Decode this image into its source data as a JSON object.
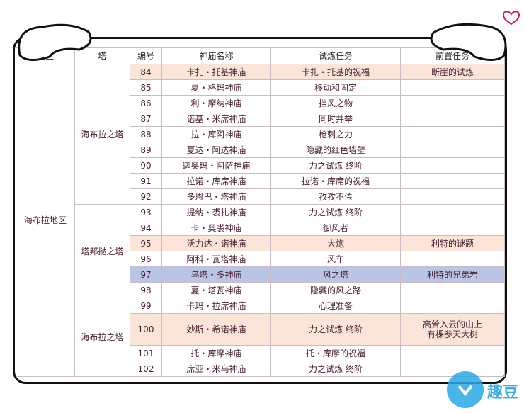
{
  "table": {
    "header": [
      "地区",
      "塔",
      "编号",
      "神庙名称",
      "试炼任务",
      "前置任务"
    ],
    "region": "海布拉地区",
    "groups": [
      {
        "tower": "海布拉之塔",
        "rows": [
          {
            "no": 84,
            "shrine": "卡扎・托基神庙",
            "trial": "卡扎・托基的祝福",
            "prereq": "断崖的试炼",
            "color": "#fbe4d8"
          },
          {
            "no": 85,
            "shrine": "夏・格玛神庙",
            "trial": "移动和固定"
          },
          {
            "no": 86,
            "shrine": "利・摩纳神庙",
            "trial": "挡风之物"
          },
          {
            "no": 87,
            "shrine": "诺基・米席神庙",
            "trial": "同时并举"
          },
          {
            "no": 88,
            "shrine": "拉・库阿神庙",
            "trial": "枪刺之力"
          },
          {
            "no": 89,
            "shrine": "夏达・阿达神庙",
            "trial": "隐藏的红色墙壁"
          },
          {
            "no": 90,
            "shrine": "迦奥玛・阿萨神庙",
            "trial": "力之试炼 终阶"
          },
          {
            "no": 91,
            "shrine": "拉诺・库席神庙",
            "trial": "拉诺・库席的祝福"
          },
          {
            "no": 92,
            "shrine": "多恩巴・塔神庙",
            "trial": "孜孜不倦"
          }
        ]
      },
      {
        "tower": "塔邦挞之塔",
        "rows": [
          {
            "no": 93,
            "shrine": "提纳・裘扎神庙",
            "trial": "力之试炼 终阶"
          },
          {
            "no": 94,
            "shrine": "卡・奥裘神庙",
            "trial": "御风者"
          },
          {
            "no": 95,
            "shrine": "沃力达・诺神庙",
            "trial": "大炮",
            "prereq": "利特的谜题",
            "color": "#fbe4d8"
          },
          {
            "no": 96,
            "shrine": "阿科・瓦塔神庙",
            "trial": "风车"
          },
          {
            "no": 97,
            "shrine": "乌塔・多神庙",
            "trial": "风之塔",
            "prereq": "利特的兄弟岩",
            "color": "#b9c5e6"
          },
          {
            "no": 98,
            "shrine": "夏・塔瓦神庙",
            "trial": "隐藏的风之路"
          }
        ]
      },
      {
        "tower": "海布拉之塔",
        "rows": [
          {
            "no": 99,
            "shrine": "卡玛・拉席神庙",
            "trial": "心理准备"
          },
          {
            "no": 100,
            "shrine": "妙斯・希诺神庙",
            "trial": "力之试炼 终阶",
            "prereq": "高耸入云的山上\n有棵参天大树",
            "color": "#fbe4d8"
          },
          {
            "no": 101,
            "shrine": "托・库摩神庙",
            "trial": "托・库摩的祝福"
          },
          {
            "no": 102,
            "shrine": "席亚・米乌神庙",
            "trial": "力之试炼 终阶"
          }
        ]
      }
    ],
    "watermark": "趣豆"
  }
}
